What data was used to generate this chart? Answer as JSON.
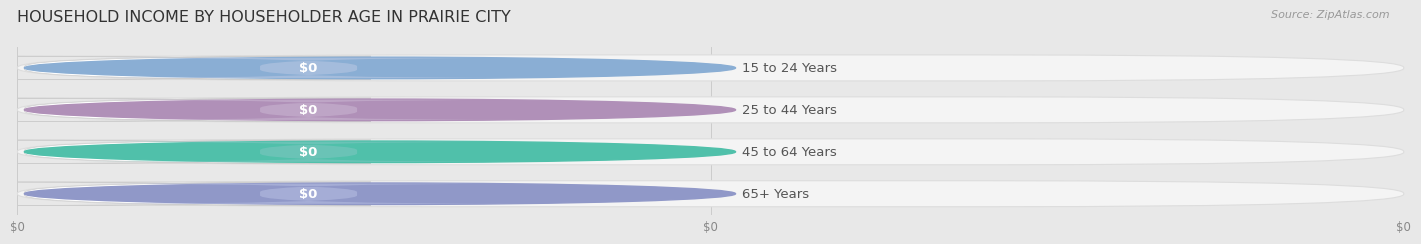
{
  "title": "HOUSEHOLD INCOME BY HOUSEHOLDER AGE IN PRAIRIE CITY",
  "source": "Source: ZipAtlas.com",
  "categories": [
    "15 to 24 Years",
    "25 to 44 Years",
    "45 to 64 Years",
    "65+ Years"
  ],
  "values": [
    0,
    0,
    0,
    0
  ],
  "bar_colors": [
    "#a8bedd",
    "#c0a8c8",
    "#6dc4b8",
    "#a8b0d8"
  ],
  "accent_colors": [
    "#8aaed4",
    "#b090b8",
    "#50c0aa",
    "#9098c8"
  ],
  "background_color": "#e8e8e8",
  "bar_bg_color": "#f4f4f4",
  "bar_stroke_color": "#d8d8d8",
  "title_color": "#333333",
  "title_fontsize": 11.5,
  "label_fontsize": 9.5,
  "tick_fontsize": 8.5,
  "source_fontsize": 8,
  "xtick_labels": [
    "$0",
    "$0",
    "$0"
  ],
  "xtick_positions": [
    0,
    0.5,
    1.0
  ]
}
